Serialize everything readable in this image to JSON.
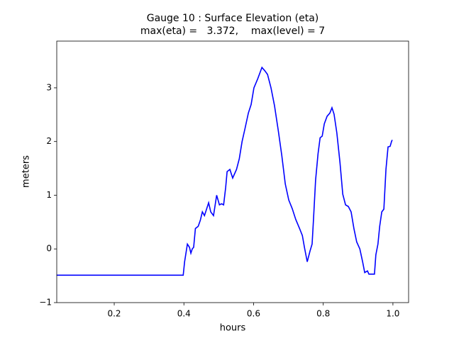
{
  "chart_data": {
    "type": "line",
    "title": [
      "Gauge 10 : Surface Elevation (eta)",
      "max(eta) =   3.372,    max(level) = 7"
    ],
    "x_label": "hours",
    "y_label": "meters",
    "xlim": [
      0.035,
      1.045
    ],
    "ylim": [
      -1,
      3.87
    ],
    "xticks": [
      0.2,
      0.4,
      0.6,
      0.8,
      {
        "value": 1,
        "label": "1.0"
      }
    ],
    "yticks": [
      {
        "value": -1,
        "label": "−1"
      },
      0,
      1,
      2,
      3
    ],
    "series": [
      {
        "name": "eta",
        "color": "#0000ff",
        "x": [
          0.035,
          0.398,
          0.402,
          0.41,
          0.416,
          0.42,
          0.424,
          0.428,
          0.433,
          0.441,
          0.447,
          0.453,
          0.459,
          0.465,
          0.471,
          0.477,
          0.485,
          0.494,
          0.502,
          0.508,
          0.514,
          0.52,
          0.524,
          0.532,
          0.54,
          0.551,
          0.559,
          0.567,
          0.575,
          0.585,
          0.593,
          0.601,
          0.612,
          0.624,
          0.632,
          0.64,
          0.65,
          0.66,
          0.671,
          0.681,
          0.691,
          0.701,
          0.711,
          0.721,
          0.732,
          0.74,
          0.746,
          0.754,
          0.762,
          0.768,
          0.772,
          0.778,
          0.785,
          0.791,
          0.797,
          0.803,
          0.811,
          0.819,
          0.825,
          0.831,
          0.839,
          0.848,
          0.856,
          0.864,
          0.872,
          0.88,
          0.888,
          0.896,
          0.905,
          0.913,
          0.919,
          0.927,
          0.931,
          0.947,
          0.951,
          0.957,
          0.962,
          0.968,
          0.974,
          0.98,
          0.986,
          0.992,
          0.996,
          0.998
        ],
        "values": [
          -0.49,
          -0.49,
          -0.24,
          0.09,
          0.03,
          -0.08,
          0,
          0.03,
          0.38,
          0.42,
          0.53,
          0.69,
          0.62,
          0.74,
          0.86,
          0.69,
          0.62,
          1.0,
          0.82,
          0.84,
          0.82,
          1.15,
          1.44,
          1.48,
          1.32,
          1.48,
          1.68,
          2.0,
          2.23,
          2.53,
          2.69,
          3.0,
          3.17,
          3.38,
          3.32,
          3.25,
          3.0,
          2.67,
          2.2,
          1.74,
          1.21,
          0.91,
          0.75,
          0.55,
          0.38,
          0.25,
          0.03,
          -0.24,
          -0.04,
          0.09,
          0.55,
          1.28,
          1.77,
          2.07,
          2.1,
          2.33,
          2.47,
          2.53,
          2.63,
          2.51,
          2.16,
          1.61,
          1.02,
          0.82,
          0.79,
          0.69,
          0.38,
          0.13,
          0,
          -0.24,
          -0.44,
          -0.41,
          -0.47,
          -0.47,
          -0.11,
          0.09,
          0.42,
          0.69,
          0.74,
          1.48,
          1.9,
          1.91,
          2.0,
          2.03
        ]
      }
    ]
  }
}
